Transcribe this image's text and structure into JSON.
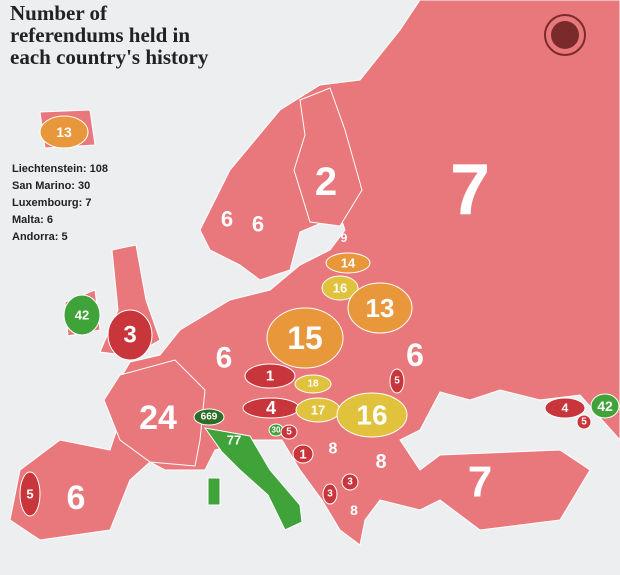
{
  "title_lines": [
    "Number of",
    "referendums held in",
    "each country's history"
  ],
  "notes": [
    "Liechtenstein: 108",
    "San Marino: 30",
    "Luxembourg: 7",
    "Malta: 6",
    "Andorra: 5"
  ],
  "labels": [
    {
      "value": 13,
      "color": "#e8973a"
    },
    {
      "value": 6,
      "color": "#e8787c"
    },
    {
      "value": 6,
      "color": "#e8787c"
    },
    {
      "value": 2,
      "color": "#c8353b"
    },
    {
      "value": 7,
      "color": "#e8787c"
    },
    {
      "value": 9,
      "color": "#e8787c"
    },
    {
      "value": 14,
      "color": "#e8973a"
    },
    {
      "value": 16,
      "color": "#e0c23c"
    },
    {
      "value": 13,
      "color": "#e8973a"
    },
    {
      "value": 42,
      "color": "#3fa33a"
    },
    {
      "value": 3,
      "color": "#c8353b"
    },
    {
      "value": 15,
      "color": "#e8973a"
    },
    {
      "value": 6,
      "color": "#e8787c"
    },
    {
      "value": 6,
      "color": "#e8787c"
    },
    {
      "value": 1,
      "color": "#c8353b"
    },
    {
      "value": 18,
      "color": "#e0c23c"
    },
    {
      "value": 4,
      "color": "#c8353b"
    },
    {
      "value": 17,
      "color": "#e0c23c"
    },
    {
      "value": 16,
      "color": "#e0c23c"
    },
    {
      "value": 5,
      "color": "#c8353b"
    },
    {
      "value": 24,
      "color": "#7cc95a"
    },
    {
      "value": 669,
      "color": "#2c6e28"
    },
    {
      "value": 77,
      "color": "#3fa33a"
    },
    {
      "value": 30,
      "color": "#3fa33a"
    },
    {
      "value": 5,
      "color": "#c8353b"
    },
    {
      "value": 1,
      "color": "#c8353b"
    },
    {
      "value": 8,
      "color": "#e8787c"
    },
    {
      "value": 8,
      "color": "#e8787c"
    },
    {
      "value": 3,
      "color": "#c8353b"
    },
    {
      "value": 3,
      "color": "#c8353b"
    },
    {
      "value": 8,
      "color": "#e8787c"
    },
    {
      "value": 4,
      "color": "#c8353b"
    },
    {
      "value": 5,
      "color": "#c8353b"
    },
    {
      "value": 42,
      "color": "#3fa33a"
    },
    {
      "value": 7,
      "color": "#e8787c"
    },
    {
      "value": 5,
      "color": "#c8353b"
    },
    {
      "value": 6,
      "color": "#e8787c"
    }
  ]
}
